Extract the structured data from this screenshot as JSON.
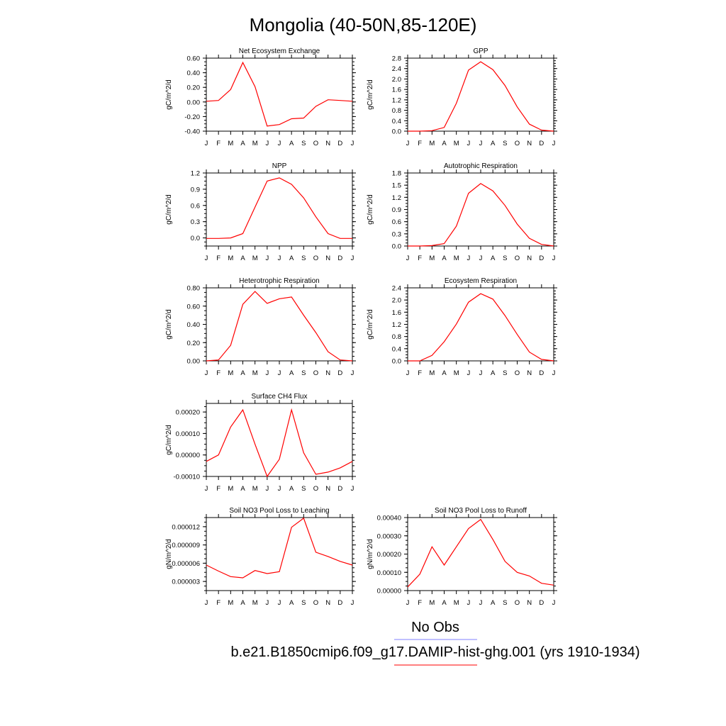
{
  "figure": {
    "title": "Mongolia (40-50N,85-120E)",
    "legend": [
      {
        "label": "No Obs",
        "color": "#8080ff"
      },
      {
        "label": "b.e21.B1850cmip6.f09_g17.DAMIP-hist-ghg.001 (yrs 1910-1934)",
        "color": "#ff0000"
      }
    ],
    "series_color": "#ff0000"
  },
  "chart_data": [
    {
      "type": "line",
      "title": "Net Ecosystem Exchange",
      "ylabel": "gC/m^2/d",
      "categories": [
        "J",
        "F",
        "M",
        "A",
        "M",
        "J",
        "J",
        "A",
        "S",
        "O",
        "N",
        "D",
        "J"
      ],
      "yticks": [
        "0.60",
        "0.40",
        "0.20",
        "0.00",
        "-0.20",
        "-0.40"
      ],
      "ylim": [
        -0.4,
        0.6
      ],
      "values": [
        0.01,
        0.02,
        0.17,
        0.54,
        0.21,
        -0.33,
        -0.31,
        -0.23,
        -0.22,
        -0.06,
        0.03,
        0.02,
        0.01
      ]
    },
    {
      "type": "line",
      "title": "GPP",
      "ylabel": "gC/m^2/d",
      "categories": [
        "J",
        "F",
        "M",
        "A",
        "M",
        "J",
        "J",
        "A",
        "S",
        "O",
        "N",
        "D",
        "J"
      ],
      "yticks": [
        "2.8",
        "2.4",
        "2.0",
        "1.6",
        "1.2",
        "0.8",
        "0.4",
        "0.0"
      ],
      "ylim": [
        0,
        2.8
      ],
      "values": [
        0.0,
        0.0,
        0.02,
        0.14,
        1.07,
        2.34,
        2.66,
        2.36,
        1.75,
        0.93,
        0.27,
        0.04,
        0.0
      ]
    },
    {
      "type": "line",
      "title": "NPP",
      "ylabel": "gC/m^2/d",
      "categories": [
        "J",
        "F",
        "M",
        "A",
        "M",
        "J",
        "J",
        "A",
        "S",
        "O",
        "N",
        "D",
        "J"
      ],
      "yticks": [
        "1.2",
        "0.9",
        "0.6",
        "0.3",
        "0.0"
      ],
      "ylim": [
        -0.15,
        1.2
      ],
      "values": [
        -0.01,
        -0.01,
        0.0,
        0.08,
        0.57,
        1.05,
        1.11,
        0.99,
        0.74,
        0.39,
        0.08,
        -0.01,
        -0.01
      ]
    },
    {
      "type": "line",
      "title": "Autotrophic Respiration",
      "ylabel": "gC/m^2/d",
      "categories": [
        "J",
        "F",
        "M",
        "A",
        "M",
        "J",
        "J",
        "A",
        "S",
        "O",
        "N",
        "D",
        "J"
      ],
      "yticks": [
        "1.8",
        "1.5",
        "1.2",
        "0.9",
        "0.6",
        "0.3",
        "0.0"
      ],
      "ylim": [
        0,
        1.8
      ],
      "values": [
        0.0,
        0.0,
        0.01,
        0.06,
        0.49,
        1.3,
        1.54,
        1.36,
        1.0,
        0.54,
        0.19,
        0.04,
        0.0
      ]
    },
    {
      "type": "line",
      "title": "Heterotrophic Respiration",
      "ylabel": "gC/m^2/d",
      "categories": [
        "J",
        "F",
        "M",
        "A",
        "M",
        "J",
        "J",
        "A",
        "S",
        "O",
        "N",
        "D",
        "J"
      ],
      "yticks": [
        "0.80",
        "0.60",
        "0.40",
        "0.20",
        "0.00"
      ],
      "ylim": [
        0,
        0.8
      ],
      "values": [
        0.0,
        0.01,
        0.17,
        0.62,
        0.76,
        0.63,
        0.68,
        0.7,
        0.5,
        0.31,
        0.1,
        0.01,
        0.0
      ]
    },
    {
      "type": "line",
      "title": "Ecosystem Respiration",
      "ylabel": "gC/m^2/d",
      "categories": [
        "J",
        "F",
        "M",
        "A",
        "M",
        "J",
        "J",
        "A",
        "S",
        "O",
        "N",
        "D",
        "J"
      ],
      "yticks": [
        "2.4",
        "2.0",
        "1.6",
        "1.2",
        "0.8",
        "0.4",
        "0.0"
      ],
      "ylim": [
        0,
        2.4
      ],
      "values": [
        0.0,
        0.0,
        0.18,
        0.63,
        1.21,
        1.93,
        2.21,
        2.03,
        1.49,
        0.87,
        0.29,
        0.05,
        0.0
      ]
    },
    {
      "type": "line",
      "title": "Surface CH4 Flux",
      "ylabel": "gC/m^2/d",
      "categories": [
        "J",
        "F",
        "M",
        "A",
        "M",
        "J",
        "J",
        "A",
        "S",
        "O",
        "N",
        "D",
        "J"
      ],
      "yticks": [
        "0.00020",
        "0.00010",
        "0.00000",
        "-0.00010"
      ],
      "ylim": [
        -0.0001,
        0.00024
      ],
      "values": [
        -3e-05,
        0.0,
        0.00013,
        0.00021,
        5e-05,
        -0.0001,
        -2e-05,
        0.00021,
        1e-05,
        -9e-05,
        -8e-05,
        -6e-05,
        -3e-05
      ]
    },
    {
      "type": "line",
      "title": "Soil NO3 Pool Loss to Leaching",
      "ylabel": "gN/m^2/d",
      "categories": [
        "J",
        "F",
        "M",
        "A",
        "M",
        "J",
        "J",
        "A",
        "S",
        "O",
        "N",
        "D",
        "J"
      ],
      "yticks": [
        "0.000012",
        "0.000009",
        "0.000006",
        "0.000003"
      ],
      "ylim": [
        1.5e-06,
        1.35e-05
      ],
      "values": [
        5.7e-06,
        4.7e-06,
        3.8e-06,
        3.6e-06,
        4.8e-06,
        4.3e-06,
        4.6e-06,
        1.19e-05,
        1.34e-05,
        7.8e-06,
        7.1e-06,
        6.3e-06,
        5.7e-06
      ]
    },
    {
      "type": "line",
      "title": "Soil NO3 Pool Loss to Runoff",
      "ylabel": "gN/m^2/d",
      "categories": [
        "J",
        "F",
        "M",
        "A",
        "M",
        "J",
        "J",
        "A",
        "S",
        "O",
        "N",
        "D",
        "J"
      ],
      "yticks": [
        "0.00040",
        "0.00030",
        "0.00020",
        "0.00010",
        "0.00000"
      ],
      "ylim": [
        0,
        0.0004
      ],
      "values": [
        2e-05,
        9e-05,
        0.00024,
        0.00014,
        0.00024,
        0.00034,
        0.00039,
        0.00028,
        0.00016,
        0.0001,
        8e-05,
        4e-05,
        3e-05
      ]
    }
  ]
}
